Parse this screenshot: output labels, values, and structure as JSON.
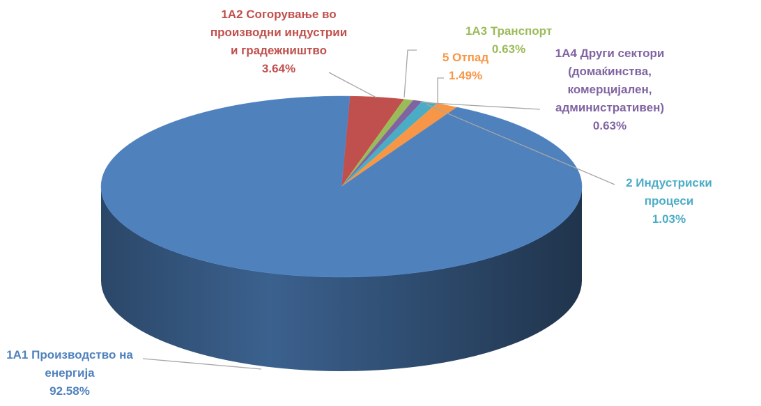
{
  "chart_data": {
    "type": "pie",
    "categories": [
      "1A2 Согорување во производни индустрии и градежништво",
      "1A3 Транспорт",
      "1A4 Други сектори (домаќинства, комерцијален, административен)",
      "2 Индустриски процеси",
      "5 Отпад",
      "1A1 Производство на енергија"
    ],
    "values": [
      3.64,
      0.63,
      0.63,
      1.03,
      1.49,
      92.58
    ],
    "value_labels": [
      "3.64%",
      "0.63%",
      "0.63%",
      "1.03%",
      "1.49%",
      "92.58%"
    ],
    "colors": [
      "#c0504d",
      "#9bbb59",
      "#8064a2",
      "#4bacc6",
      "#f79646",
      "#4f81bd"
    ]
  }
}
